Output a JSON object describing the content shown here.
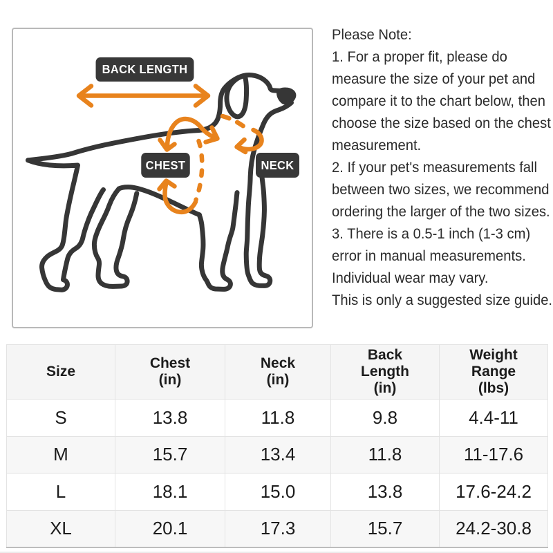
{
  "diagram": {
    "labels": {
      "back_length": "BACK LENGTH",
      "chest": "CHEST",
      "neck": "NECK"
    },
    "colors": {
      "outline": "#363636",
      "accent_orange": "#e8831d",
      "label_bg": "#383838"
    }
  },
  "notes": {
    "heading": "Please Note:",
    "items": [
      "1. For a proper fit, please do\nmeasure the size of your pet and\ncompare it to the chart below, then\nchoose the size based on the chest\nmeasurement.",
      "2. If your pet's measurements fall\nbetween two sizes, we recommend\nordering the larger of the two sizes.",
      "3. There is a 0.5-1 inch (1-3 cm)\nerror in manual measurements.\nIndividual wear may vary.",
      "This is only a suggested size guide."
    ]
  },
  "size_chart": {
    "headers": [
      "Size",
      "Chest\n(in)",
      "Neck\n(in)",
      "Back\nLength\n(in)",
      "Weight\nRange\n(lbs)"
    ],
    "rows": [
      [
        "S",
        "13.8",
        "11.8",
        "9.8",
        "4.4-11"
      ],
      [
        "M",
        "15.7",
        "13.4",
        "11.8",
        "11-17.6"
      ],
      [
        "L",
        "18.1",
        "15.0",
        "13.8",
        "17.6-24.2"
      ],
      [
        "XL",
        "20.1",
        "17.3",
        "15.7",
        "24.2-30.8"
      ]
    ]
  },
  "chart_data": {
    "type": "table",
    "title": "Pet clothing size guide",
    "columns": [
      "Size",
      "Chest (in)",
      "Neck (in)",
      "Back Length (in)",
      "Weight Range (lbs)"
    ],
    "rows": [
      {
        "size": "S",
        "chest_in": 13.8,
        "neck_in": 11.8,
        "back_length_in": 9.8,
        "weight_range_lbs": "4.4-11"
      },
      {
        "size": "M",
        "chest_in": 15.7,
        "neck_in": 13.4,
        "back_length_in": 11.8,
        "weight_range_lbs": "11-17.6"
      },
      {
        "size": "L",
        "chest_in": 18.1,
        "neck_in": 15.0,
        "back_length_in": 13.8,
        "weight_range_lbs": "17.6-24.2"
      },
      {
        "size": "XL",
        "chest_in": 20.1,
        "neck_in": 17.3,
        "back_length_in": 15.7,
        "weight_range_lbs": "24.2-30.8"
      }
    ]
  }
}
